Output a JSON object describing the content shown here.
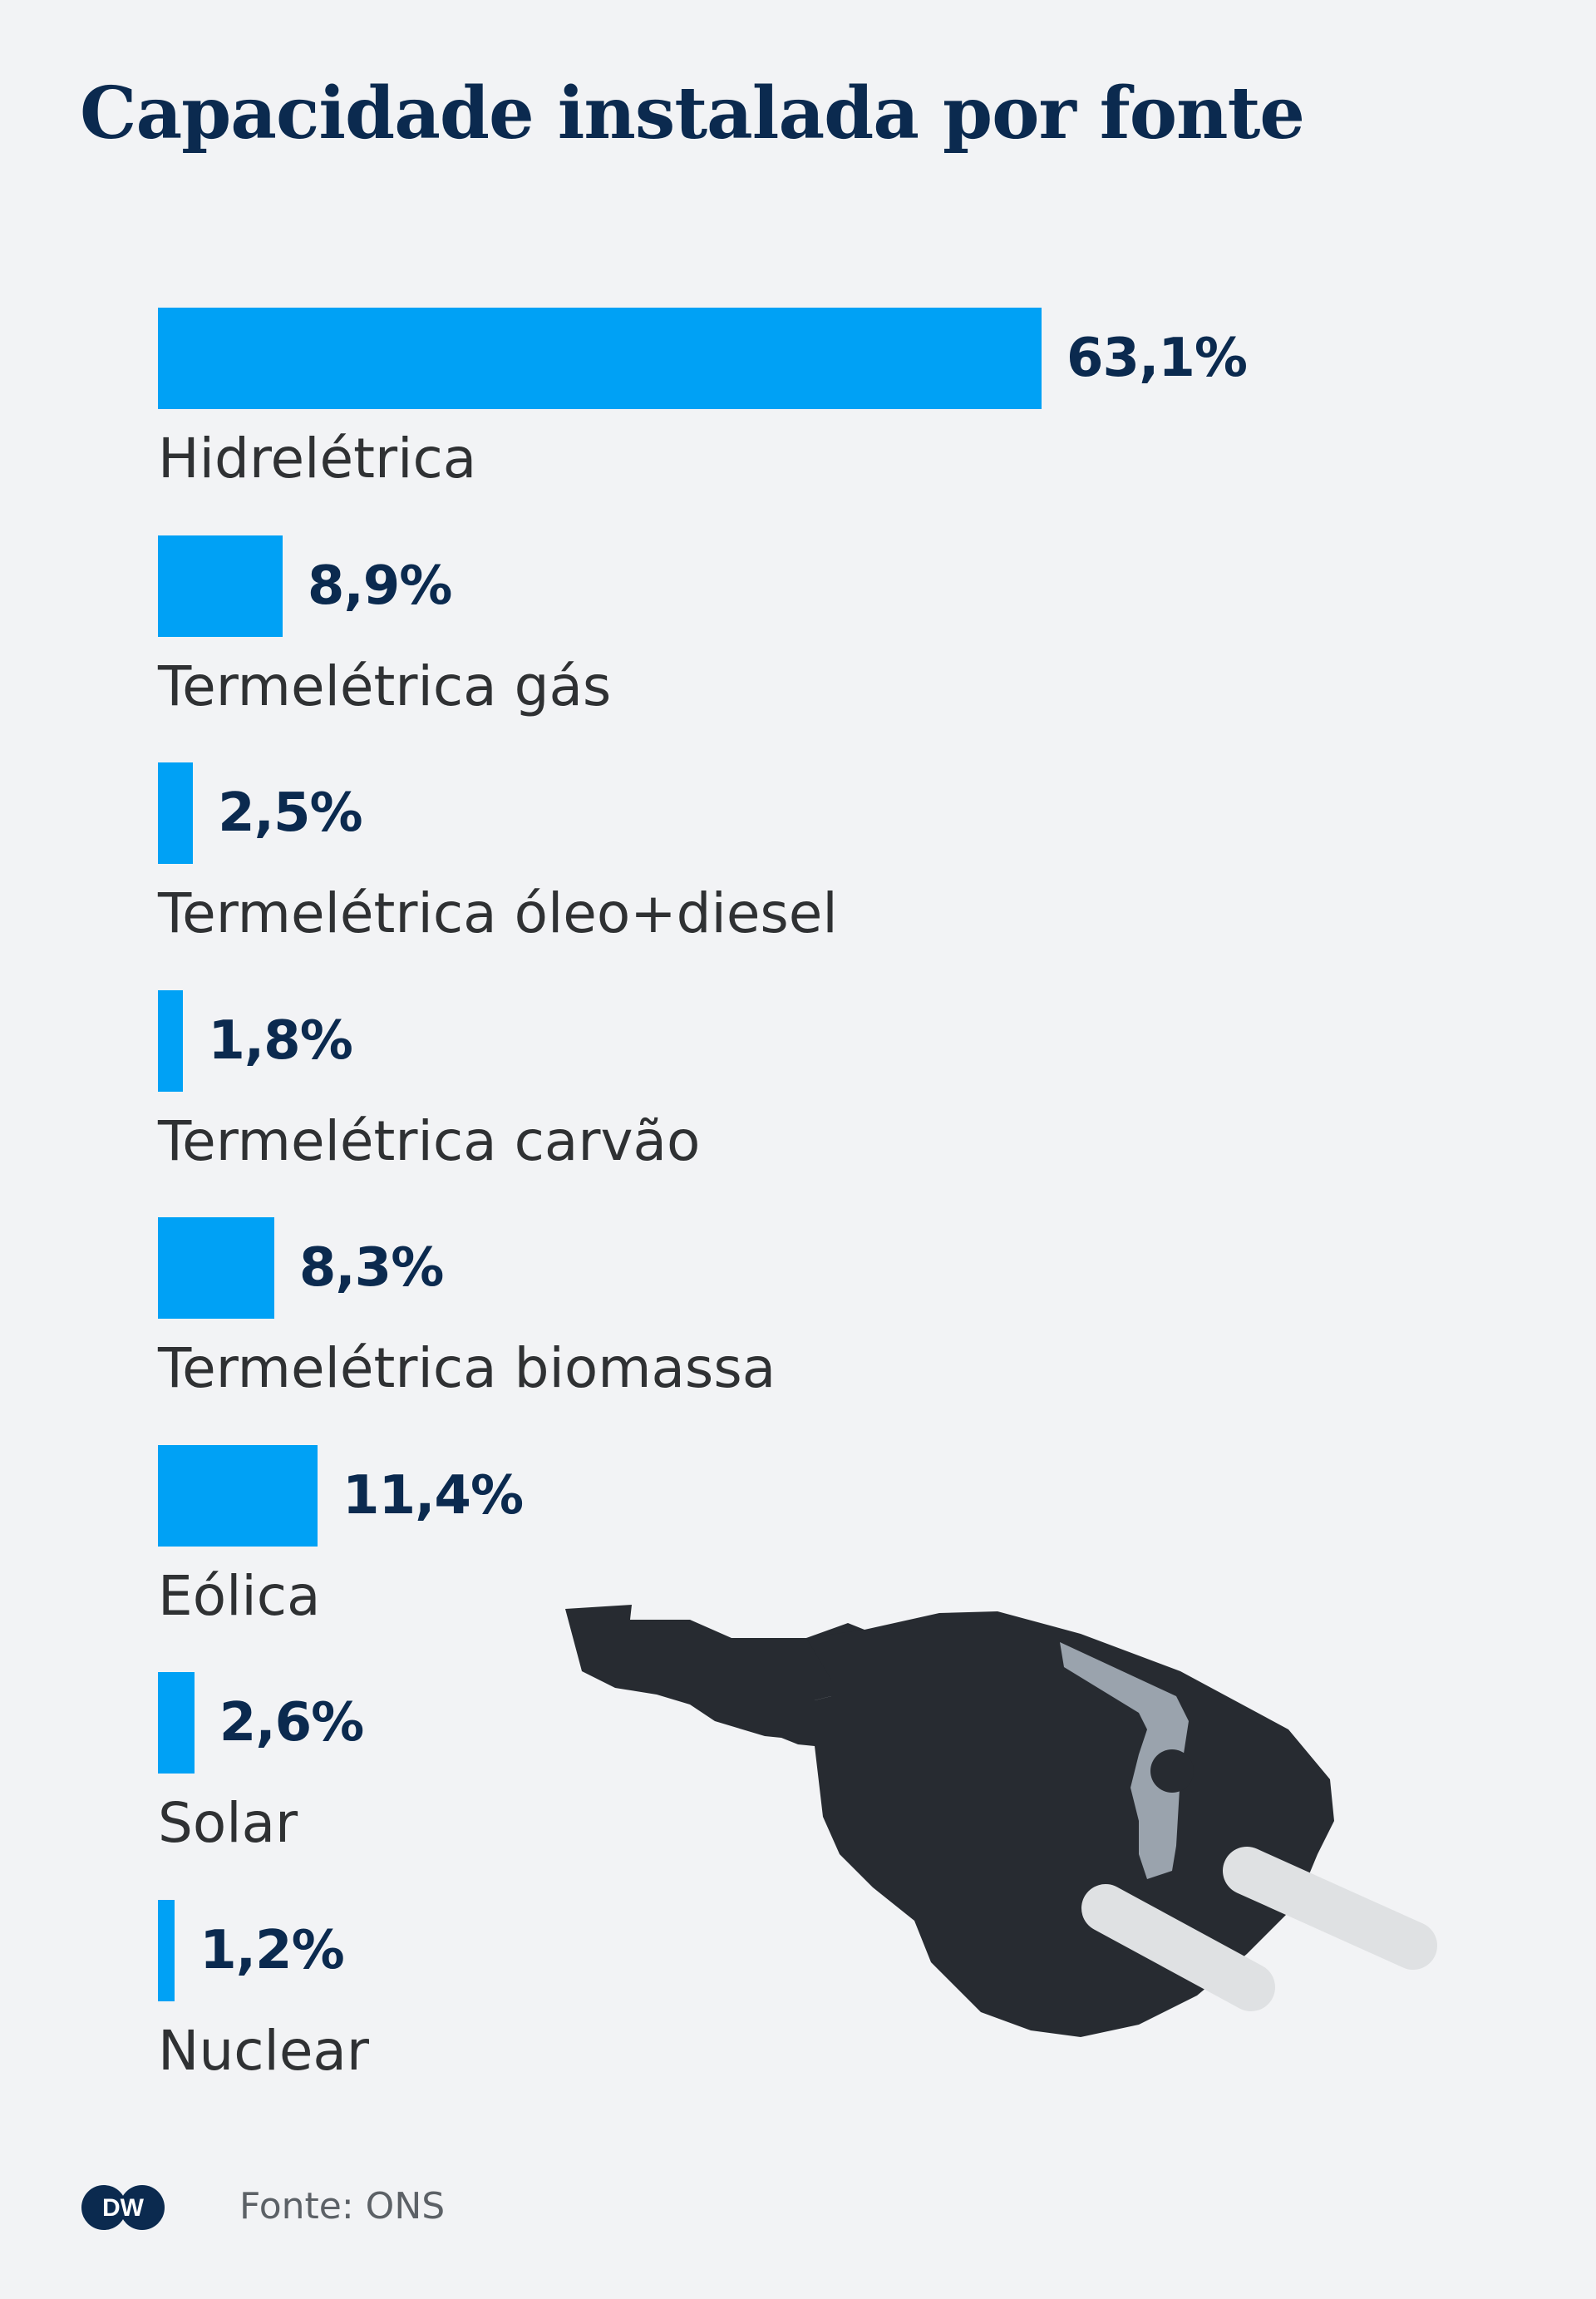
{
  "chart_data": {
    "type": "bar",
    "orientation": "horizontal",
    "title": "Capacidade instalada por fonte",
    "categories": [
      "Hidrelétrica",
      "Termelétrica gás",
      "Termelétrica óleo+diesel",
      "Termelétrica carvão",
      "Termelétrica biomassa",
      "Eólica",
      "Solar",
      "Nuclear"
    ],
    "values": [
      63.1,
      8.9,
      2.5,
      1.8,
      8.3,
      11.4,
      2.6,
      1.2
    ],
    "value_labels": [
      "63,1%",
      "8,9%",
      "2,5%",
      "1,8%",
      "8,3%",
      "11,4%",
      "2,6%",
      "1,2%"
    ],
    "unit": "%",
    "bar_color": "#00a1f5",
    "grid": false,
    "legend": "none"
  },
  "source": "Fonte: ONS",
  "logo": {
    "text": "DW",
    "icon": "dw-logo-icon"
  },
  "illustration": {
    "icon": "power-plug-icon"
  },
  "colors": {
    "background": "#f2f3f5",
    "title": "#0b2a4f",
    "bar": "#00a1f5",
    "label": "#2f3133"
  }
}
